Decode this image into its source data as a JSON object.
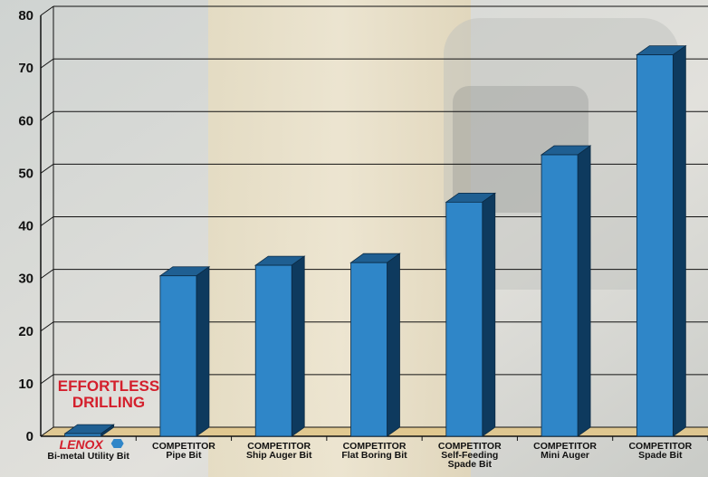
{
  "chart_data": {
    "type": "bar",
    "categories": [
      {
        "brand": "LENOX",
        "line1": "",
        "line2": "Bi-metal Utility Bit",
        "line3": ""
      },
      {
        "brand": "",
        "line1": "COMPETITOR",
        "line2": "Pipe Bit",
        "line3": ""
      },
      {
        "brand": "",
        "line1": "COMPETITOR",
        "line2": "Ship Auger Bit",
        "line3": ""
      },
      {
        "brand": "",
        "line1": "COMPETITOR",
        "line2": "Flat Boring Bit",
        "line3": ""
      },
      {
        "brand": "",
        "line1": "COMPETITOR",
        "line2": "Self-Feeding",
        "line3": "Spade Bit"
      },
      {
        "brand": "",
        "line1": "COMPETITOR",
        "line2": "Mini Auger",
        "line3": ""
      },
      {
        "brand": "",
        "line1": "COMPETITOR",
        "line2": "Spade Bit",
        "line3": ""
      }
    ],
    "values": [
      0.5,
      30.5,
      32.5,
      33,
      44.5,
      53.5,
      72.5
    ],
    "ylim": [
      0,
      80
    ],
    "yticks": [
      0,
      10,
      20,
      30,
      40,
      50,
      60,
      70,
      80
    ],
    "grid": true,
    "annotation": {
      "line1": "EFFORTLESS",
      "line2": "DRILLING"
    },
    "colors": {
      "bar_front": "#2f86c8",
      "bar_side": "#0e3a5e",
      "bar_top": "#1f5f92",
      "floor": "#e0c58a",
      "accent": "#d41f2c"
    }
  }
}
